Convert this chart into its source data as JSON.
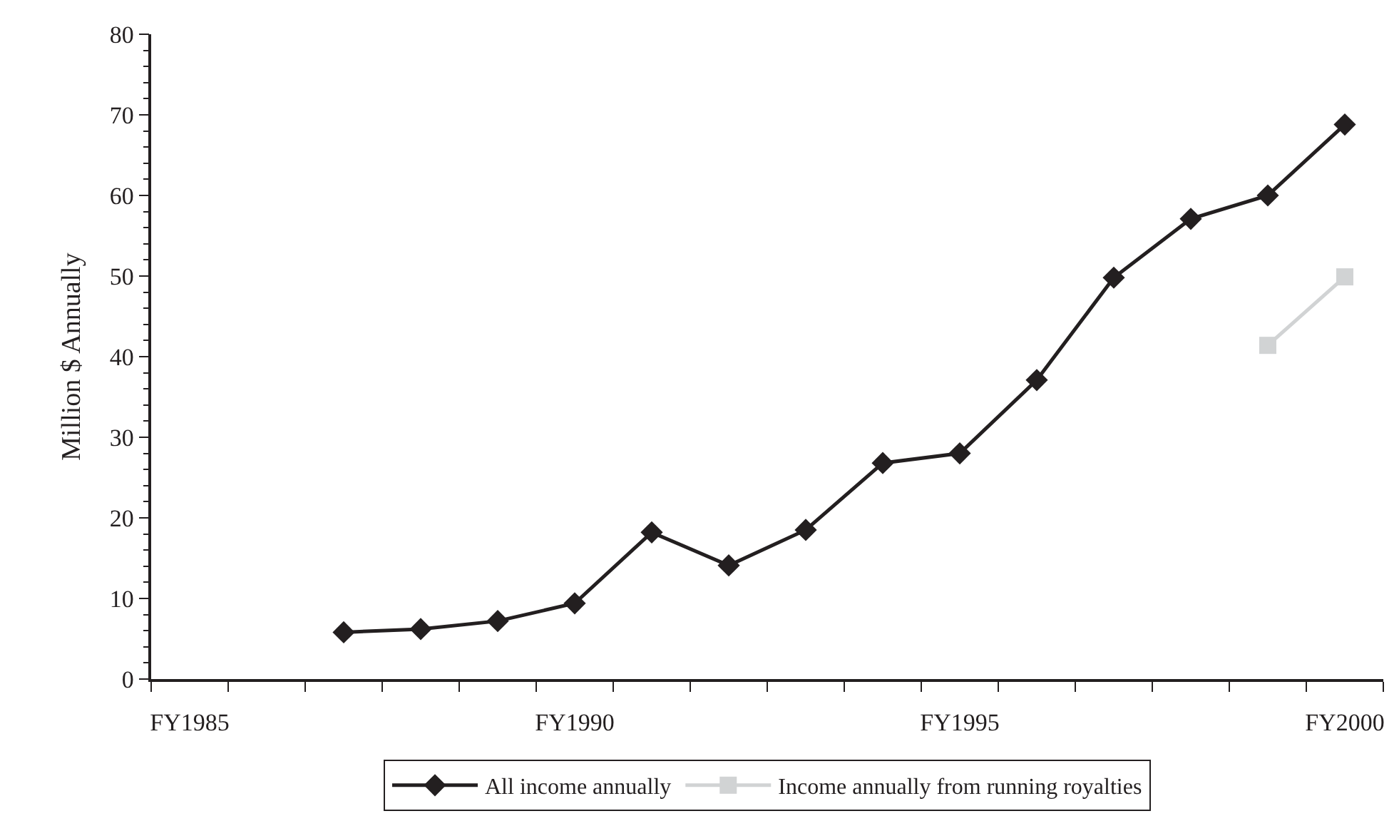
{
  "chart_data": {
    "type": "line",
    "ylabel": "Million $ Annually",
    "categories": [
      "FY1985",
      null,
      null,
      null,
      null,
      "FY1990",
      null,
      null,
      null,
      null,
      "FY1995",
      null,
      null,
      null,
      null,
      "FY2000"
    ],
    "series": [
      {
        "name": "All income annually",
        "color": "#231f20",
        "marker": "diamond",
        "values": [
          null,
          null,
          5.8,
          6.2,
          7.2,
          9.4,
          18.2,
          14.1,
          18.5,
          26.8,
          28.0,
          37.1,
          49.8,
          57.1,
          60.0,
          68.8
        ]
      },
      {
        "name": "Income annually from running royalties",
        "color": "#d1d3d4",
        "marker": "square",
        "values": [
          null,
          null,
          null,
          null,
          null,
          null,
          null,
          null,
          null,
          null,
          null,
          null,
          null,
          null,
          41.4,
          49.9
        ]
      }
    ],
    "ylim": [
      0,
      80
    ],
    "yticks": [
      0,
      10,
      20,
      30,
      40,
      50,
      60,
      70,
      80
    ],
    "legend": "bottom"
  }
}
